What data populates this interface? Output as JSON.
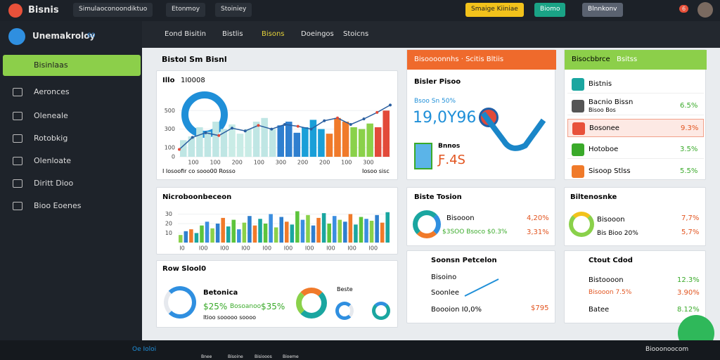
{
  "topbar": {
    "brand": "Bisnis",
    "tabs": [
      "Simulaoconoondiktuo",
      "Etonmoy",
      "Stoiniey"
    ],
    "buttons": [
      "Smaige Kiiniae",
      "Biomo",
      "Blnnkonv"
    ],
    "badge": "6"
  },
  "sidebar": {
    "title": "Unemakroloy",
    "badge": "60",
    "items": [
      "Bisinlaas",
      "Aeronces",
      "Oleneale",
      "Rotobkig",
      "Olenloate",
      "Diritt Dioo",
      "Bioo Eoenes"
    ]
  },
  "nav": [
    "Eond Bisitin",
    "Bistlis",
    "Bisons",
    "Doeingos",
    "Stoicns"
  ],
  "overview": {
    "header": "Bistol Sm Bisnl",
    "card_title": "Illo",
    "card_sub": "1I0008",
    "footer_left": "I Iosoofir co sooo00 Rosso",
    "footer_right": "Iosoo sisc",
    "chart": {
      "ylim": [
        0,
        700
      ],
      "yticks": [
        0,
        100,
        300,
        500
      ],
      "x_labels": [
        "100",
        "100",
        "200",
        "100",
        "300",
        "200",
        "200",
        "100",
        "300"
      ],
      "palette": [
        "#bfe6e4",
        "#bfe6e4",
        "#c9ece6",
        "#bfe6e4",
        "#2f7fcf",
        "#1a9fd8",
        "#f07a2a",
        "#8ad14a",
        "#e24a3a"
      ],
      "bars": [
        180,
        220,
        320,
        270,
        380,
        300,
        350,
        250,
        300,
        380,
        420,
        300,
        340,
        380,
        260,
        320,
        400,
        300,
        250,
        420,
        380,
        320,
        300,
        360,
        320,
        500
      ],
      "line": [
        80,
        210,
        260,
        230,
        310,
        280,
        340,
        300,
        350,
        330,
        300,
        390,
        420,
        350,
        410,
        480,
        560
      ]
    }
  },
  "kpi": {
    "header": "Bisoooonnhs · Scitis Bltiis",
    "title": "Bisler Pisoo",
    "sub": "Bsoo Sn 50%",
    "big": "19,0Y96",
    "label": "Bnnos",
    "value": "Ƒ.4S"
  },
  "list": {
    "header": "Bisocbbrce",
    "header2": "Bsitss",
    "rows": [
      {
        "label": "Bistnis",
        "sub": "",
        "value": ""
      },
      {
        "label": "Bacnio Bissn",
        "sub": "Bisoo Bos",
        "value": "6.5%"
      },
      {
        "label": "Bosonee",
        "sub": "",
        "value": "9.3%"
      },
      {
        "label": "Hotoboe",
        "sub": "",
        "value": "3.5%"
      },
      {
        "label": "Sisoop Stlss",
        "sub": "",
        "value": "5.5%"
      }
    ]
  },
  "mix": {
    "header": "Nicroboonbeceon",
    "ylim": [
      0,
      40
    ],
    "yticks": [
      10,
      20,
      30
    ],
    "x_labels": [
      "I0",
      "I00",
      "I00",
      "I00",
      "I00",
      "I00",
      "I00",
      "I00",
      "I00",
      "I00"
    ],
    "palette": [
      "#8ad14a",
      "#2f7fcf",
      "#f07a2a",
      "#1aa6a0",
      "#5cc43c",
      "#3b8ee0"
    ],
    "values": [
      8,
      12,
      14,
      10,
      18,
      22,
      15,
      20,
      26,
      17,
      24,
      14,
      21,
      28,
      18,
      25,
      20,
      30,
      16,
      27,
      22,
      19,
      33,
      24,
      29,
      18,
      26,
      31,
      20,
      28,
      24,
      22,
      30,
      19,
      27,
      25,
      23,
      29,
      21,
      32
    ]
  },
  "row": {
    "header": "Row Slool0",
    "title": "Betonica",
    "v1": "$25%",
    "l2": "Bosoanoo",
    "v2": "$35%",
    "foot": "Itioo sooooo soooo",
    "tag": "Beste"
  },
  "dist": {
    "header": "Biste Tosion",
    "l1": "Bisooon",
    "v1": "4,20%",
    "l2": "$3SOO Bsoco $0.3%",
    "v2": "3,31%"
  },
  "bal": {
    "header": "Biltenosnke",
    "l1": "Bisooon",
    "v1": "7,7%",
    "l2": "Bis Bioo 20%",
    "v2": "5,7%"
  },
  "season": {
    "header": "Soonsn Petcelon",
    "r1": "Bisoino",
    "r2": "Soonlee",
    "r3": "Boooion I0,0%",
    "v3": "$795"
  },
  "card": {
    "header": "Ctout Cdod",
    "r1": "Bistoooon",
    "v1": "12.3%",
    "r2": "Bisooon 7.5%",
    "v2": "3.90%",
    "r3": "Batee",
    "v3": "8.12%"
  },
  "taskbar": {
    "search": "Oe Ioloi",
    "apps": [
      "Bnee",
      "Bisoine",
      "Bisiooos",
      "Bioeme"
    ],
    "right": "Biooonoocom"
  }
}
